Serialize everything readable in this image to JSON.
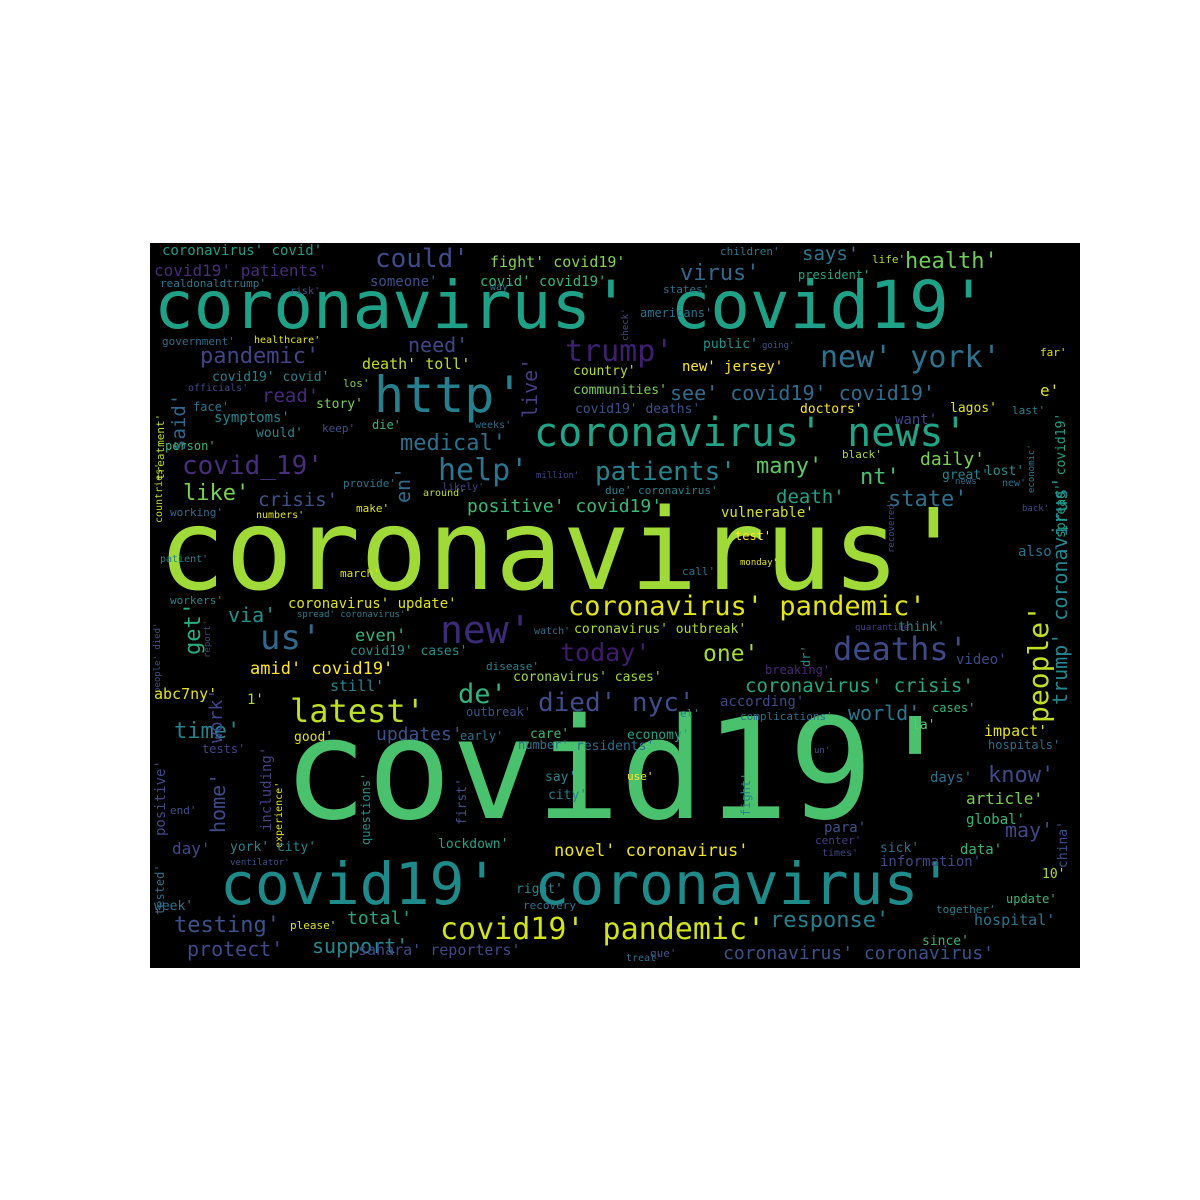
{
  "palette": {
    "background": "#000000",
    "page": "#ffffff",
    "lime": "#a0da39",
    "green": "#4ac16d",
    "teal": "#1fa187",
    "cyan": "#277f8e",
    "blue": "#365c8d",
    "indigo": "#46327e",
    "purple": "#440154",
    "yellow": "#fde725"
  },
  "words": [
    "coronavirus'",
    "covid19'",
    "coronavirus' covid19'",
    "covid19' coronavirus'",
    "http'",
    "coronavirus' news'",
    "new' york'",
    "trump'",
    "coronavirus' pandemic'",
    "covid19' pandemic'",
    "new'",
    "us'",
    "deaths'",
    "people'",
    "latest'",
    "help'",
    "patients'",
    "could'",
    "covid_19'",
    "today'",
    "virus'",
    "health'",
    "pandemic'",
    "medical'",
    "state'",
    "trump' coronavirus'",
    "see' covid19' covid19'",
    "died' nyc'",
    "coronavirus' crisis'",
    "de'",
    "many'",
    "nt'",
    "one'",
    "positive' covid19'",
    "get'",
    "like'",
    "need'",
    "crisis'",
    "read'",
    "said'",
    "time'",
    "response'",
    "testing'",
    "support'",
    "protect'",
    "amid' covid19'",
    "novel' coronavirus'",
    "know'",
    "may'",
    "world'",
    "updates'",
    "coronavirus' coronavirus'",
    "work'",
    "via'",
    "home'",
    "death'",
    "says'",
    "daily'",
    "live'",
    "en'",
    "total'",
    "fight' covid19'",
    "coronavirus' covid'",
    "covid19' patients'",
    "someone'",
    "covid' covid19'",
    "realdonaldtrump'",
    "president'",
    "children'",
    "life'",
    "states'",
    "americans'",
    "government'",
    "healthcare'",
    "public'",
    "country'",
    "new' jersey'",
    "death' toll'",
    "covid19' covid'",
    "officials'",
    "los'",
    "communities'",
    "covid19' deaths'",
    "symptoms'",
    "story'",
    "face'",
    "would'",
    "keep'",
    "die'",
    "weeks'",
    "person'",
    "doctors'",
    "want'",
    "lagos'",
    "last'",
    "e'",
    "far'",
    "spread' covid19'",
    "economic'",
    "black'",
    "lost'",
    "new'",
    "great'",
    "news'",
    "going'",
    "treatment'",
    "countries'",
    "provide'",
    "million'",
    "around'",
    "likely'",
    "due' coronavirus'",
    "working'",
    "numbers'",
    "make'",
    "vulnerable'",
    "recovered'",
    "test'",
    "patient'",
    "march'",
    "call'",
    "monday'",
    "also'",
    "workers'",
    "spread' coronavirus'",
    "coronavirus' update'",
    "report'",
    "people' died'",
    "watch'",
    "coronavirus' outbreak'",
    "quarantine'",
    "think'",
    "dr'",
    "even'",
    "covid19' cases'",
    "disease'",
    "coronavirus' cases'",
    "breaking'",
    "video'",
    "abc7ny'",
    "still'",
    "1'",
    "according'",
    "complications'",
    "cases'",
    "outbreak'",
    "el'",
    "la'",
    "impact'",
    "care'",
    "economy'",
    "early'",
    "good'",
    "number'",
    "residents'",
    "hospitals'",
    "tests'",
    "including'",
    "experience'",
    "un'",
    "days'",
    "say'",
    "use'",
    "city'",
    "fight'",
    "article'",
    "positive'",
    "end'",
    "questions'",
    "first'",
    "para'",
    "global'",
    "day'",
    "york' city'",
    "lockdown'",
    "center'",
    "times'",
    "sick'",
    "data'",
    "china'",
    "information'",
    "tested'",
    "ventilator'",
    "10'",
    "right'",
    "week'",
    "recovery'",
    "update'",
    "together'",
    "please'",
    "hospital'",
    "since'",
    "sahara' reporters'",
    "treat'",
    "que'",
    "check'",
    "way'",
    "back'",
    "risk'"
  ]
}
